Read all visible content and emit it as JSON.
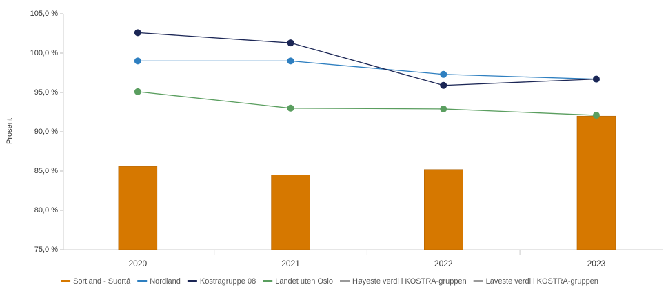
{
  "chart_data": {
    "type": "bar",
    "y_label": "Prosent",
    "categories": [
      "2020",
      "2021",
      "2022",
      "2023"
    ],
    "ylim": [
      75,
      105
    ],
    "yticks": [
      {
        "value": 75,
        "label": "75,0 %"
      },
      {
        "value": 80,
        "label": "80,0 %"
      },
      {
        "value": 85,
        "label": "85,0 %"
      },
      {
        "value": 90,
        "label": "90,0 %"
      },
      {
        "value": 95,
        "label": "95,0 %"
      },
      {
        "value": 100,
        "label": "100,0 %"
      },
      {
        "value": 105,
        "label": "105,0 %"
      }
    ],
    "grid": false,
    "legend": "bottom",
    "series": [
      {
        "name": "Sortland - Suortá",
        "type": "bar",
        "color": "#d67800",
        "values": [
          85.6,
          84.5,
          85.2,
          92.0
        ]
      },
      {
        "name": "Nordland",
        "type": "line",
        "color": "#2e7fc0",
        "values": [
          99.0,
          99.0,
          97.3,
          96.7
        ]
      },
      {
        "name": "Kostragruppe 08",
        "type": "line",
        "color": "#1b2655",
        "values": [
          102.6,
          101.3,
          95.9,
          96.7
        ]
      },
      {
        "name": "Landet uten Oslo",
        "type": "line",
        "color": "#5a9e5f",
        "values": [
          95.1,
          93.0,
          92.9,
          92.1
        ]
      },
      {
        "name": "Høyeste verdi i KOSTRA-gruppen",
        "type": "line",
        "color": "#9a9a9a",
        "values": [
          null,
          null,
          null,
          null
        ]
      },
      {
        "name": "Laveste verdi i KOSTRA-gruppen",
        "type": "line",
        "color": "#9a9a9a",
        "values": [
          null,
          null,
          null,
          null
        ]
      }
    ]
  }
}
